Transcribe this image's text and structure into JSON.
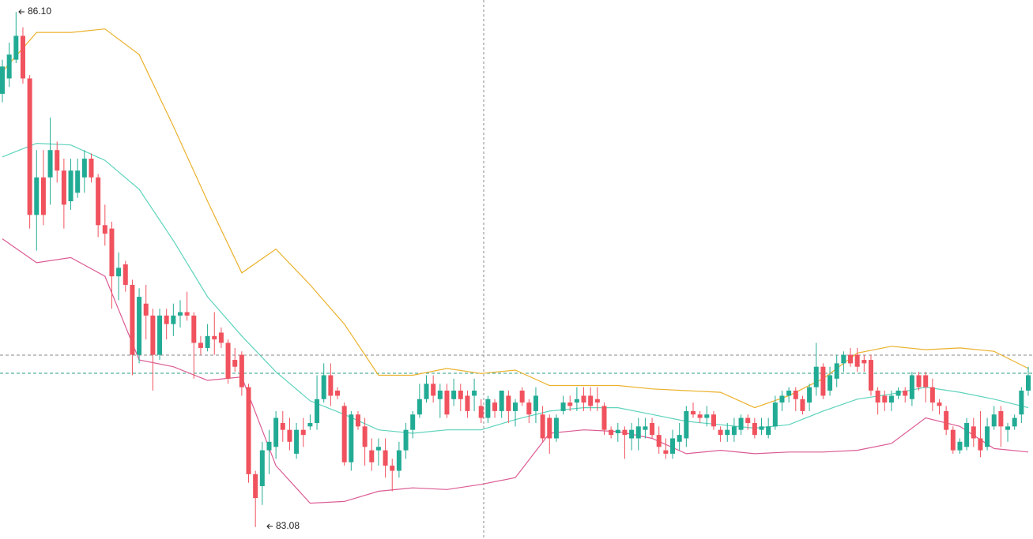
{
  "chart_data": {
    "type": "candlestick",
    "up_color": "#22ab94",
    "down_color": "#f0525e",
    "ylim": [
      83.01,
      86.17
    ],
    "high_label": "86.10",
    "low_label": "83.08",
    "open": [
      85.62,
      85.71,
      85.82,
      85.96,
      85.71,
      84.91,
      85.13,
      85.13,
      85.29,
      85.17,
      84.99,
      85.04,
      85.13,
      85.24,
      85.13,
      84.85,
      84.83,
      84.55,
      84.62,
      84.5,
      84.09,
      84.39,
      84.32,
      84.09,
      84.32,
      84.27,
      84.32,
      84.34,
      84.32,
      84.16,
      84.13,
      84.2,
      84.22,
      84.16,
      84.06,
      84.09,
      83.9,
      83.39,
      83.32,
      83.53,
      83.55,
      83.69,
      83.65,
      83.51,
      83.65,
      83.67,
      83.69,
      83.83,
      83.97,
      83.88,
      83.79,
      83.46,
      83.74,
      83.67,
      83.53,
      83.53,
      83.53,
      83.44,
      83.41,
      83.53,
      83.65,
      83.74,
      83.83,
      83.92,
      83.83,
      83.88,
      83.83,
      83.88,
      83.85,
      83.85,
      83.79,
      83.72,
      83.81,
      83.76,
      83.85,
      83.76,
      83.88,
      83.81,
      83.76,
      83.74,
      83.72,
      83.6,
      83.76,
      83.81,
      83.81,
      83.85,
      83.85,
      83.83,
      83.79,
      83.65,
      83.63,
      83.65,
      83.6,
      83.6,
      83.65,
      83.69,
      83.62,
      83.53,
      83.51,
      83.58,
      83.6,
      83.76,
      83.74,
      83.72,
      83.74,
      83.65,
      83.62,
      83.62,
      83.65,
      83.72,
      83.69,
      83.65,
      83.62,
      83.67,
      83.81,
      83.85,
      83.88,
      83.83,
      83.81,
      83.9,
      84.02,
      83.88,
      83.95,
      84.04,
      84.09,
      84.09,
      84.06,
      84.06,
      83.88,
      83.85,
      83.81,
      83.85,
      83.88,
      83.83,
      83.97,
      83.97,
      83.9,
      83.81,
      83.76,
      83.65,
      83.53,
      83.55,
      83.67,
      83.6,
      83.55,
      83.67,
      83.76,
      83.65,
      83.67,
      83.74,
      83.88
    ],
    "high": [
      85.82,
      85.92,
      86.1,
      86.01,
      85.73,
      85.29,
      85.29,
      85.48,
      85.34,
      85.24,
      85.24,
      85.24,
      85.29,
      85.27,
      85.15,
      84.97,
      84.87,
      84.69,
      84.64,
      84.53,
      84.48,
      84.5,
      84.36,
      84.36,
      84.36,
      84.39,
      84.41,
      84.46,
      84.34,
      84.2,
      84.27,
      84.34,
      84.25,
      84.18,
      84.13,
      84.11,
      83.92,
      83.41,
      83.58,
      83.65,
      83.76,
      83.76,
      83.72,
      83.69,
      83.72,
      83.74,
      83.97,
      84.04,
      84.04,
      83.9,
      83.81,
      83.76,
      83.76,
      83.72,
      83.6,
      83.6,
      83.6,
      83.48,
      83.58,
      83.69,
      83.76,
      83.92,
      83.97,
      83.97,
      83.92,
      83.92,
      83.95,
      83.92,
      83.88,
      83.95,
      83.83,
      83.85,
      83.83,
      83.88,
      83.88,
      83.83,
      83.9,
      83.83,
      83.9,
      83.79,
      83.74,
      83.74,
      83.85,
      83.85,
      83.9,
      83.9,
      83.9,
      83.9,
      83.81,
      83.67,
      83.69,
      83.67,
      83.69,
      83.72,
      83.72,
      83.72,
      83.67,
      83.6,
      83.65,
      83.69,
      83.79,
      83.81,
      83.76,
      83.79,
      83.76,
      83.67,
      83.69,
      83.72,
      83.74,
      83.74,
      83.72,
      83.72,
      83.72,
      83.85,
      83.88,
      83.9,
      83.9,
      83.85,
      83.92,
      84.16,
      84.04,
      84.02,
      84.09,
      84.11,
      84.13,
      84.13,
      84.09,
      84.09,
      83.9,
      83.88,
      83.88,
      83.9,
      83.9,
      83.99,
      83.99,
      83.99,
      83.95,
      83.83,
      83.79,
      83.67,
      83.6,
      83.72,
      83.72,
      83.76,
      83.72,
      83.79,
      83.79,
      83.69,
      83.74,
      83.9,
      84.02
    ],
    "low": [
      85.57,
      85.66,
      85.8,
      85.68,
      84.83,
      84.7,
      84.85,
      84.97,
      85.1,
      84.83,
      84.94,
      85.01,
      85.04,
      85.1,
      84.78,
      84.73,
      84.36,
      84.41,
      84.46,
      83.97,
      84.04,
      84.18,
      83.88,
      84.06,
      84.18,
      84.2,
      84.25,
      84.29,
      83.95,
      84.09,
      84.11,
      84.09,
      84.13,
      83.92,
      83.99,
      83.85,
      83.34,
      83.08,
      83.21,
      83.39,
      83.48,
      83.58,
      83.53,
      83.48,
      83.55,
      83.65,
      83.65,
      83.81,
      83.79,
      83.83,
      83.44,
      83.41,
      83.65,
      83.44,
      83.41,
      83.44,
      83.37,
      83.29,
      83.37,
      83.48,
      83.6,
      83.72,
      83.81,
      83.81,
      83.72,
      83.72,
      83.79,
      83.76,
      83.72,
      83.76,
      83.69,
      83.69,
      83.72,
      83.72,
      83.69,
      83.67,
      83.79,
      83.69,
      83.69,
      83.58,
      83.51,
      83.58,
      83.74,
      83.76,
      83.76,
      83.76,
      83.76,
      83.76,
      83.62,
      83.6,
      83.58,
      83.48,
      83.53,
      83.53,
      83.6,
      83.6,
      83.51,
      83.48,
      83.48,
      83.53,
      83.55,
      83.72,
      83.69,
      83.67,
      83.65,
      83.58,
      83.58,
      83.58,
      83.62,
      83.65,
      83.6,
      83.62,
      83.6,
      83.65,
      83.76,
      83.81,
      83.76,
      83.74,
      83.76,
      83.85,
      83.83,
      83.85,
      83.9,
      83.99,
      84.02,
      83.99,
      83.99,
      83.85,
      83.74,
      83.76,
      83.76,
      83.83,
      83.81,
      83.79,
      83.88,
      83.81,
      83.76,
      83.74,
      83.62,
      83.51,
      83.51,
      83.53,
      83.55,
      83.49,
      83.53,
      83.65,
      83.55,
      83.58,
      83.65,
      83.69,
      83.85
    ],
    "close": [
      85.78,
      85.85,
      85.96,
      85.71,
      84.91,
      85.13,
      84.91,
      85.29,
      85.17,
      84.97,
      85.17,
      85.17,
      85.24,
      85.13,
      84.85,
      84.8,
      84.55,
      84.6,
      84.5,
      84.09,
      84.43,
      84.32,
      84.09,
      84.32,
      84.27,
      84.32,
      84.34,
      84.32,
      84.16,
      84.13,
      84.2,
      84.18,
      84.16,
      83.95,
      84.02,
      83.9,
      83.39,
      83.25,
      83.53,
      83.58,
      83.72,
      83.65,
      83.58,
      83.65,
      83.62,
      83.69,
      83.83,
      83.97,
      83.85,
      83.85,
      83.46,
      83.74,
      83.67,
      83.55,
      83.46,
      83.55,
      83.44,
      83.41,
      83.53,
      83.65,
      83.74,
      83.83,
      83.92,
      83.85,
      83.88,
      83.74,
      83.88,
      83.83,
      83.76,
      83.88,
      83.72,
      83.83,
      83.76,
      83.88,
      83.76,
      83.81,
      83.81,
      83.74,
      83.85,
      83.6,
      83.6,
      83.72,
      83.81,
      83.79,
      83.83,
      83.81,
      83.79,
      83.81,
      83.65,
      83.62,
      83.65,
      83.62,
      83.65,
      83.67,
      83.67,
      83.62,
      83.55,
      83.51,
      83.6,
      83.62,
      83.76,
      83.74,
      83.72,
      83.74,
      83.67,
      83.62,
      83.65,
      83.67,
      83.72,
      83.69,
      83.62,
      83.67,
      83.67,
      83.81,
      83.85,
      83.88,
      83.83,
      83.76,
      83.9,
      84.02,
      83.85,
      83.97,
      84.04,
      84.09,
      84.04,
      84.02,
      84.04,
      83.88,
      83.81,
      83.81,
      83.85,
      83.88,
      83.85,
      83.97,
      83.9,
      83.9,
      83.81,
      83.79,
      83.65,
      83.53,
      83.58,
      83.69,
      83.6,
      83.53,
      83.67,
      83.74,
      83.67,
      83.67,
      83.72,
      83.88,
      83.97
    ],
    "bands": [
      {
        "color": "#ebb12b",
        "values": [
          85.75,
          85.98,
          85.98,
          86.0,
          85.85,
          85.43,
          84.99,
          84.57,
          84.71,
          84.5,
          84.27,
          83.97,
          83.97,
          84.01,
          83.98,
          84.0,
          83.91,
          83.91,
          83.91,
          83.89,
          83.88,
          83.87,
          83.78,
          83.85,
          83.95,
          84.1,
          84.14,
          84.12,
          84.13,
          84.11,
          84.01
        ]
      },
      {
        "color": "#5ed3bd",
        "values": [
          85.25,
          85.33,
          85.32,
          85.23,
          85.06,
          84.76,
          84.43,
          84.2,
          83.99,
          83.82,
          83.74,
          83.65,
          83.63,
          83.65,
          83.65,
          83.71,
          83.76,
          83.78,
          83.78,
          83.74,
          83.7,
          83.68,
          83.66,
          83.68,
          83.76,
          83.83,
          83.86,
          83.9,
          83.87,
          83.83,
          83.78
        ]
      },
      {
        "color": "#dc5b94",
        "values": [
          84.77,
          84.63,
          84.66,
          84.55,
          84.06,
          84.02,
          83.94,
          83.96,
          83.44,
          83.22,
          83.23,
          83.29,
          83.31,
          83.3,
          83.33,
          83.37,
          83.63,
          83.65,
          83.64,
          83.6,
          83.51,
          83.53,
          83.51,
          83.52,
          83.52,
          83.53,
          83.57,
          83.72,
          83.67,
          83.54,
          83.52
        ]
      }
    ]
  }
}
